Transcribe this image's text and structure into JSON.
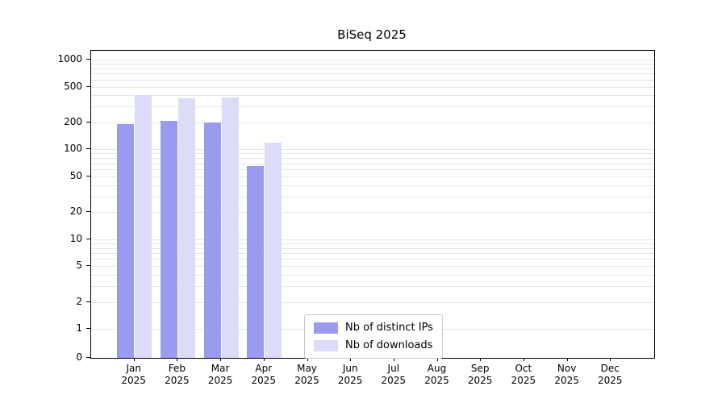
{
  "title": "BiSeq 2025",
  "colors": {
    "ips": "#9a9aee",
    "downloads": "#dcdcf8",
    "grid": "#e6e6e6"
  },
  "legend": [
    {
      "label": "Nb of distinct IPs",
      "series_key": "ips"
    },
    {
      "label": "Nb of downloads",
      "series_key": "downloads"
    }
  ],
  "chart_data": {
    "type": "bar",
    "scale": "symlog",
    "title": "BiSeq 2025",
    "xlabel": "",
    "ylabel": "",
    "categories": [
      "Jan 2025",
      "Feb 2025",
      "Mar 2025",
      "Apr 2025",
      "May 2025",
      "Jun 2025",
      "Jul 2025",
      "Aug 2025",
      "Sep 2025",
      "Oct 2025",
      "Nov 2025",
      "Dec 2025"
    ],
    "series": [
      {
        "name": "Nb of distinct IPs",
        "values": [
          190,
          210,
          200,
          65,
          0,
          0,
          0,
          0,
          0,
          0,
          0,
          0
        ]
      },
      {
        "name": "Nb of downloads",
        "values": [
          400,
          370,
          375,
          120,
          0,
          0,
          0,
          0,
          0,
          0,
          0,
          0
        ]
      }
    ],
    "y_ticks": [
      0,
      1,
      2,
      5,
      10,
      20,
      50,
      100,
      200,
      500,
      1000
    ],
    "ylim": [
      0,
      1250
    ],
    "grid": "on",
    "legend_position": "lower center"
  }
}
